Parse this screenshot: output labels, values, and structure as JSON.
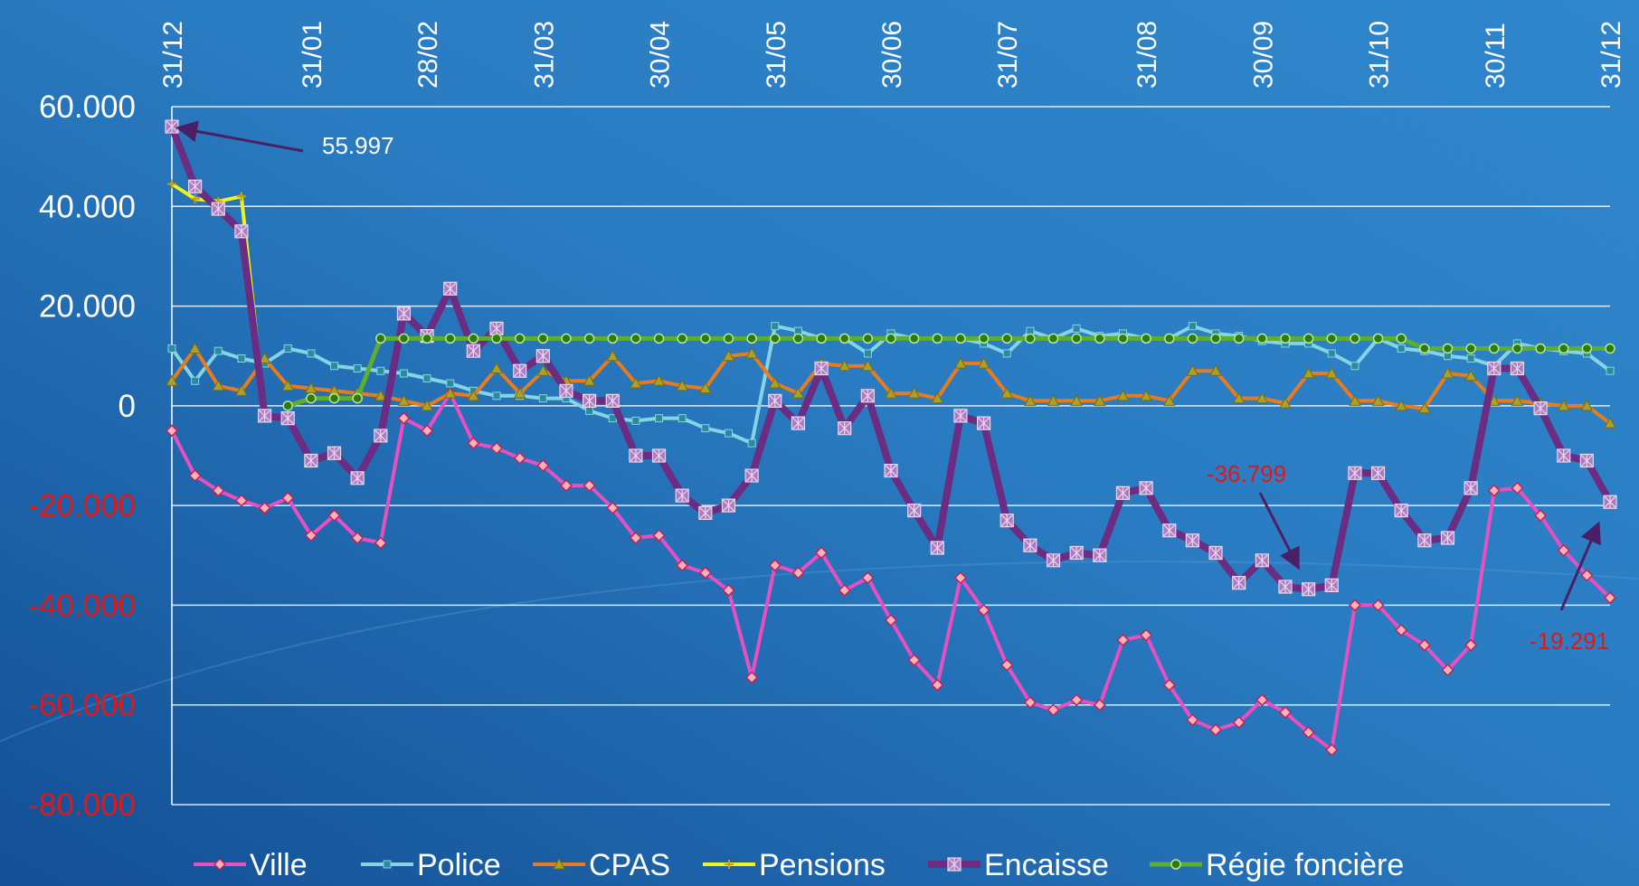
{
  "chart_data": {
    "type": "line",
    "categories": [
      "31/12",
      null,
      null,
      null,
      null,
      null,
      "31/01",
      null,
      null,
      null,
      null,
      "28/02",
      null,
      null,
      null,
      null,
      "31/03",
      null,
      null,
      null,
      null,
      "30/04",
      null,
      null,
      null,
      null,
      "31/05",
      null,
      null,
      null,
      null,
      "30/06",
      null,
      null,
      null,
      null,
      "31/07",
      null,
      null,
      null,
      null,
      null,
      "31/08",
      null,
      null,
      null,
      null,
      "30/09",
      null,
      null,
      null,
      null,
      "31/10",
      null,
      null,
      null,
      null,
      "30/11",
      null,
      null,
      null,
      null,
      "31/12"
    ],
    "ylim": [
      -80000,
      60000
    ],
    "yticks": [
      {
        "value": -80000,
        "label": "-80.000"
      },
      {
        "value": -60000,
        "label": "-60.000"
      },
      {
        "value": -40000,
        "label": "-40.000"
      },
      {
        "value": -20000,
        "label": "-20.000"
      },
      0,
      {
        "value": 20000,
        "label": "20.000"
      },
      {
        "value": 40000,
        "label": "40.000"
      },
      {
        "value": 60000,
        "label": "60.000"
      }
    ],
    "grid": true,
    "legend": "bottom",
    "series": [
      {
        "name": "Ville",
        "color": "#ea4fc0",
        "marker": "diamond",
        "values": [
          -5000,
          -14000,
          -17000,
          -19000,
          -20500,
          -18500,
          -26000,
          -22000,
          -26500,
          -27500,
          -2500,
          -5000,
          2500,
          -7500,
          -8500,
          -10500,
          -12000,
          -16000,
          -16000,
          -20500,
          -26500,
          -26000,
          -32000,
          -33500,
          -37000,
          -54500,
          -32000,
          -33500,
          -29500,
          -37000,
          -34500,
          -43000,
          -51000,
          -56000,
          -34500,
          -41000,
          -52000,
          -59500,
          -61000,
          -59000,
          -60000,
          -47000,
          -46000,
          -56000,
          -63000,
          -65000,
          -63500,
          -59000,
          -61500,
          -65500,
          -69000,
          -40000,
          -40000,
          -45000,
          -48000,
          -53000,
          -48000,
          -17000,
          -16500,
          -22000,
          -29000,
          -34000,
          -38500
        ]
      },
      {
        "name": "Police",
        "color": "#86d3e3",
        "marker": "square",
        "values": [
          11500,
          5000,
          11000,
          9500,
          8500,
          11500,
          10500,
          8000,
          7500,
          7000,
          6500,
          5500,
          4500,
          3000,
          2000,
          2000,
          1500,
          1500,
          -1000,
          -2500,
          -3000,
          -2500,
          -2500,
          -4500,
          -5500,
          -7500,
          16000,
          15000,
          13500,
          13500,
          10500,
          14500,
          13500,
          13500,
          13500,
          12500,
          10500,
          15000,
          13500,
          15500,
          14000,
          14500,
          13500,
          13500,
          16000,
          14500,
          14000,
          13000,
          12500,
          12500,
          10500,
          8000,
          13500,
          11500,
          11000,
          10000,
          9500,
          8000,
          12500,
          11500,
          11000,
          10500,
          7000
        ]
      },
      {
        "name": "CPAS",
        "color": "#e87b1c",
        "marker": "triangle",
        "values": [
          5000,
          11500,
          4000,
          3000,
          9500,
          4000,
          3500,
          3000,
          2500,
          2000,
          1000,
          0,
          2500,
          2000,
          7500,
          2500,
          7000,
          5000,
          5000,
          10000,
          4500,
          5000,
          4000,
          3500,
          10000,
          10500,
          4500,
          2500,
          8500,
          8000,
          8000,
          2500,
          2500,
          1500,
          8500,
          8500,
          2500,
          1000,
          1000,
          1000,
          1000,
          2000,
          2000,
          1000,
          7000,
          7000,
          1500,
          1500,
          500,
          6500,
          6500,
          1000,
          1000,
          0,
          -500,
          6500,
          6000,
          1000,
          1000,
          500,
          0,
          0,
          -3500
        ]
      },
      {
        "name": "Pensions",
        "color": "#f2f21e",
        "marker": "plus",
        "values": [
          44500,
          41500,
          41000,
          42000,
          -1000,
          null,
          null,
          null,
          null,
          null,
          null,
          null,
          null,
          null,
          null,
          null,
          null,
          null,
          null,
          null,
          null,
          null,
          null,
          null,
          null,
          null,
          null,
          null,
          null,
          null,
          null,
          null,
          null,
          null,
          null,
          null,
          null,
          null,
          null,
          null,
          null,
          null,
          null,
          null,
          null,
          null,
          null,
          null,
          null,
          null,
          null,
          null,
          null,
          null,
          null,
          null,
          null,
          null,
          null,
          null,
          null,
          null,
          null
        ]
      },
      {
        "name": "Encaisse",
        "color": "#6b2c82",
        "marker": "star",
        "values": [
          55997,
          44000,
          39500,
          35000,
          -2000,
          -2500,
          -11000,
          -9500,
          -14500,
          -6000,
          18500,
          14000,
          23500,
          11000,
          15500,
          7000,
          10000,
          3000,
          1000,
          1000,
          -10000,
          -10000,
          -18000,
          -21500,
          -20000,
          -14000,
          1000,
          -3500,
          7500,
          -4500,
          2000,
          -13000,
          -21000,
          -28500,
          -2000,
          -3500,
          -23000,
          -28000,
          -31000,
          -29500,
          -30000,
          -17500,
          -16500,
          -25000,
          -27000,
          -29500,
          -35500,
          -31000,
          -36300,
          -36799,
          -36000,
          -13500,
          -13500,
          -21000,
          -27000,
          -26500,
          -16500,
          7500,
          7500,
          -500,
          -10000,
          -11000,
          -19291
        ]
      },
      {
        "name": "Régie foncière",
        "color": "#5cae2c",
        "marker": "circle",
        "values": [
          null,
          null,
          null,
          null,
          null,
          0,
          1500,
          1500,
          1500,
          13500,
          13500,
          13500,
          13500,
          13500,
          13500,
          13500,
          13500,
          13500,
          13500,
          13500,
          13500,
          13500,
          13500,
          13500,
          13500,
          13500,
          13500,
          13500,
          13500,
          13500,
          13500,
          13500,
          13500,
          13500,
          13500,
          13500,
          13500,
          13500,
          13500,
          13500,
          13500,
          13500,
          13500,
          13500,
          13500,
          13500,
          13500,
          13500,
          13500,
          13500,
          13500,
          13500,
          13500,
          13500,
          11500,
          11500,
          11500,
          11500,
          11500,
          11500,
          11500,
          11500,
          11500
        ]
      }
    ],
    "annotations": [
      {
        "text": "55.997",
        "color": "#ffffff"
      },
      {
        "text": "-36.799",
        "color": "#e01818"
      },
      {
        "text": "-19.291",
        "color": "#e01818"
      }
    ]
  }
}
